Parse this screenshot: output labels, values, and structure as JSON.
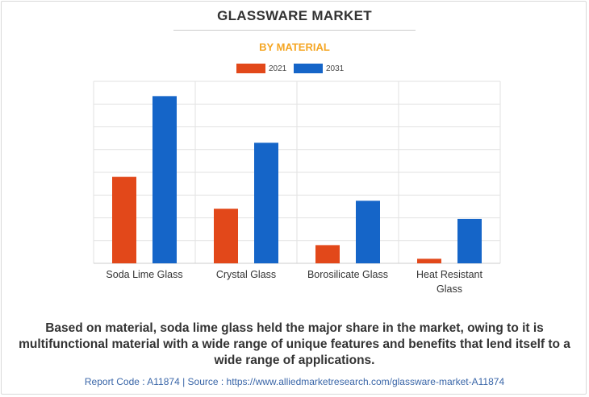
{
  "title": "GLASSWARE MARKET",
  "subtitle": "BY MATERIAL",
  "caption": "Based on material, soda lime glass held the major share in the market, owing to it is multifunctional material with a wide range of unique features and benefits that lend itself to a wide range of applications.",
  "footer": "Report Code : A11874  |  Source : https://www.alliedmarketresearch.com/glassware-market-A11874",
  "colors": {
    "2021": "#e2481a",
    "2031": "#1565c8",
    "grid": "#e2e2e2",
    "axis": "#cccccc",
    "tick_text": "#333333"
  },
  "chart_data": {
    "type": "bar",
    "title": "GLASSWARE MARKET",
    "subtitle": "BY MATERIAL",
    "categories": [
      [
        "Soda Lime Glass"
      ],
      [
        "Crystal Glass"
      ],
      [
        "Borosilicate Glass"
      ],
      [
        "Heat Resistant",
        "Glass"
      ]
    ],
    "series": [
      {
        "name": "2021",
        "values": [
          3.8,
          2.4,
          0.8,
          0.2
        ]
      },
      {
        "name": "2031",
        "values": [
          7.35,
          5.3,
          2.75,
          1.95
        ]
      }
    ],
    "ylim": [
      0,
      8
    ],
    "y_gridlines": 8,
    "y_tick_labels_shown": false,
    "legend_position": "top-center",
    "grid": true
  }
}
